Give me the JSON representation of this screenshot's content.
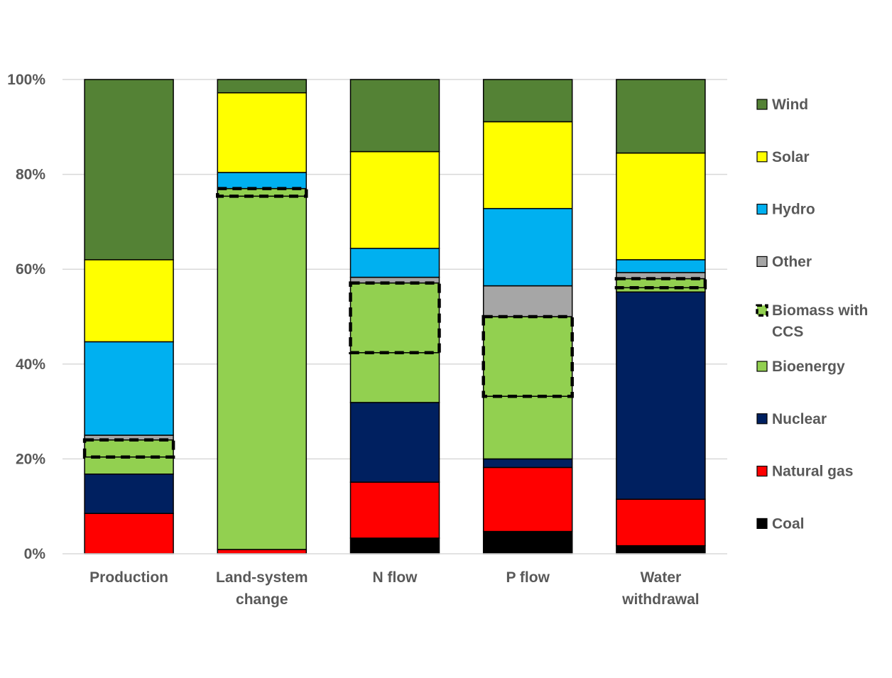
{
  "chart_data": {
    "type": "bar",
    "stacked": true,
    "percent": true,
    "title": "",
    "xlabel": "",
    "ylabel": "",
    "ylim": [
      0,
      100
    ],
    "yticks": [
      "0%",
      "20%",
      "40%",
      "60%",
      "80%",
      "100%"
    ],
    "grid": true,
    "legend_position": "right",
    "categories": [
      {
        "label": "Production",
        "lines": [
          "Production"
        ]
      },
      {
        "label": "Land-system change",
        "lines": [
          "Land-system",
          "change"
        ]
      },
      {
        "label": "N flow",
        "lines": [
          "N flow"
        ]
      },
      {
        "label": "P flow",
        "lines": [
          "P flow"
        ]
      },
      {
        "label": "Water withdrawal",
        "lines": [
          "Water",
          "withdrawal"
        ]
      }
    ],
    "series": [
      {
        "name": "Coal",
        "color": "#000000",
        "values": [
          0,
          0,
          3.3,
          4.7,
          1.7
        ]
      },
      {
        "name": "Natural gas",
        "color": "#ff0000",
        "values": [
          8.5,
          0.9,
          11.8,
          13.5,
          9.8
        ]
      },
      {
        "name": "Nuclear",
        "color": "#002060",
        "values": [
          8.3,
          0,
          16.8,
          1.8,
          43.7
        ]
      },
      {
        "name": "Bioenergy",
        "color": "#92d050",
        "values": [
          3.6,
          74.5,
          10.5,
          13.2,
          0.9
        ]
      },
      {
        "name": "Biomass with CCS",
        "color": "#92d050",
        "dashed": true,
        "values": [
          3.6,
          1.6,
          14.7,
          16.8,
          1.9
        ]
      },
      {
        "name": "Other",
        "color": "#a6a6a6",
        "values": [
          1.0,
          0,
          1.2,
          6.5,
          1.3
        ]
      },
      {
        "name": "Hydro",
        "color": "#00b0f0",
        "values": [
          19.7,
          3.4,
          6.1,
          16.3,
          2.7
        ]
      },
      {
        "name": "Solar",
        "color": "#ffff00",
        "values": [
          17.3,
          16.8,
          20.4,
          18.3,
          22.5
        ]
      },
      {
        "name": "Wind",
        "color": "#548235",
        "values": [
          38.0,
          2.8,
          15.2,
          8.9,
          15.5
        ]
      }
    ],
    "legend": [
      {
        "series": "Wind",
        "lines": [
          "Wind"
        ]
      },
      {
        "series": "Solar",
        "lines": [
          "Solar"
        ]
      },
      {
        "series": "Hydro",
        "lines": [
          "Hydro"
        ]
      },
      {
        "series": "Other",
        "lines": [
          "Other"
        ]
      },
      {
        "series": "Biomass with CCS",
        "lines": [
          "Biomass with",
          "CCS"
        ]
      },
      {
        "series": "Bioenergy",
        "lines": [
          "Bioenergy"
        ]
      },
      {
        "series": "Nuclear",
        "lines": [
          "Nuclear"
        ]
      },
      {
        "series": "Natural gas",
        "lines": [
          "Natural gas"
        ]
      },
      {
        "series": "Coal",
        "lines": [
          "Coal"
        ]
      }
    ]
  }
}
